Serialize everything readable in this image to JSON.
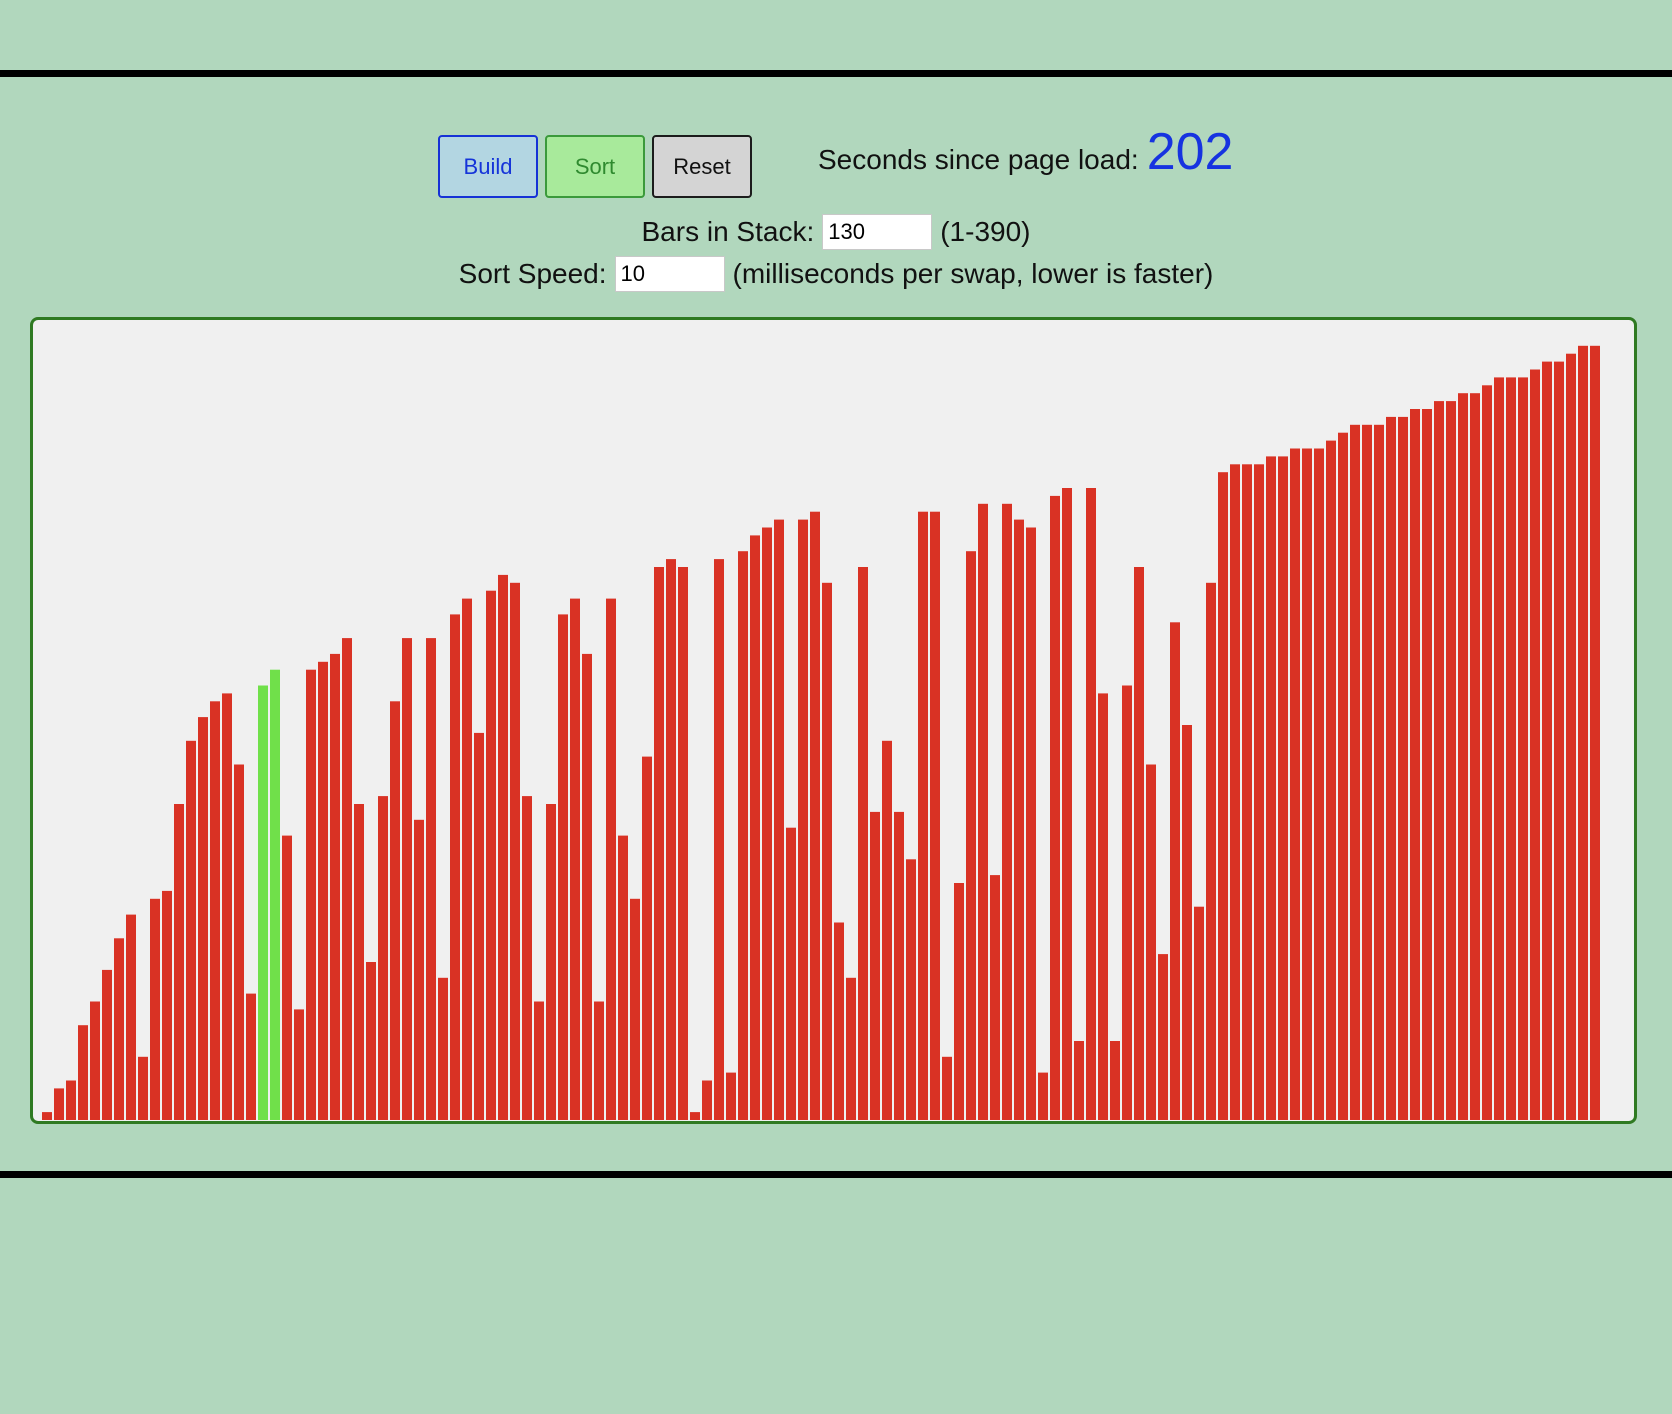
{
  "controls": {
    "build_label": "Build",
    "sort_label": "Sort",
    "reset_label": "Reset"
  },
  "timer": {
    "label": "Seconds since page load:",
    "value": "202"
  },
  "bars_field": {
    "label": "Bars in Stack:",
    "value": "130",
    "hint": "(1-390)"
  },
  "speed_field": {
    "label": "Sort Speed:",
    "value": "10",
    "hint": "(milliseconds per swap, lower is faster)"
  },
  "colors": {
    "bar": "#d93224",
    "bar_active": "#70e04a",
    "stage_border": "#2f7a22",
    "stage_bg": "#f0f0f0",
    "page_bg": "#b1d7bd",
    "timer_value": "#1633e0"
  },
  "chart_data": {
    "type": "bar",
    "active_indices": [
      18,
      19
    ],
    "values": [
      1,
      4,
      5,
      12,
      15,
      19,
      23,
      26,
      8,
      28,
      29,
      40,
      48,
      51,
      53,
      54,
      45,
      16,
      55,
      57,
      36,
      14,
      57,
      58,
      59,
      61,
      40,
      20,
      41,
      53,
      61,
      38,
      61,
      18,
      64,
      66,
      49,
      67,
      69,
      68,
      41,
      15,
      40,
      64,
      66,
      59,
      15,
      66,
      36,
      28,
      46,
      70,
      71,
      70,
      1,
      5,
      71,
      6,
      72,
      74,
      75,
      76,
      37,
      76,
      77,
      68,
      25,
      18,
      70,
      39,
      48,
      39,
      33,
      77,
      77,
      8,
      30,
      72,
      78,
      31,
      78,
      76,
      75,
      6,
      79,
      80,
      10,
      80,
      54,
      10,
      55,
      70,
      45,
      21,
      63,
      50,
      27,
      68,
      82,
      83,
      83,
      83,
      84,
      84,
      85,
      85,
      85,
      86,
      87,
      88,
      88,
      88,
      89,
      89,
      90,
      90,
      91,
      91,
      92,
      92,
      93,
      94,
      94,
      94,
      95,
      96,
      96,
      97,
      98,
      98
    ],
    "ylim": [
      0,
      100
    ]
  }
}
